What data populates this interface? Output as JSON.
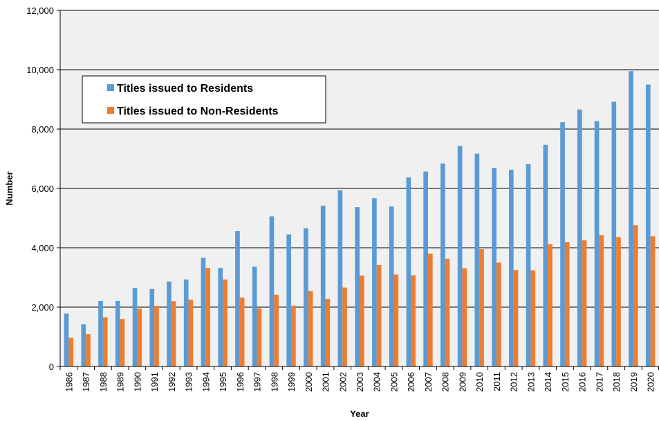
{
  "chart_data": {
    "type": "bar",
    "title": "",
    "xlabel": "Year",
    "ylabel": "Number",
    "ylim": [
      0,
      12000
    ],
    "yticks": [
      0,
      2000,
      4000,
      6000,
      8000,
      10000,
      12000
    ],
    "ytick_labels": [
      "0",
      "2,000",
      "4,000",
      "6,000",
      "8,000",
      "10,000",
      "12,000"
    ],
    "grid": true,
    "legend_position": "top-left",
    "categories": [
      "1986",
      "1987",
      "1988",
      "1989",
      "1990",
      "1991",
      "1992",
      "1993",
      "1994",
      "1995",
      "1996",
      "1997",
      "1998",
      "1999",
      "2000",
      "2001",
      "2002",
      "2003",
      "2004",
      "2005",
      "2006",
      "2007",
      "2008",
      "2009",
      "2010",
      "2011",
      "2012",
      "2013",
      "2014",
      "2015",
      "2016",
      "2017",
      "2018",
      "2019",
      "2020"
    ],
    "series": [
      {
        "name": "Titles issued to Residents",
        "color": "#5B9BD5",
        "values": [
          1780,
          1420,
          2210,
          2210,
          2650,
          2610,
          2860,
          2930,
          3660,
          3320,
          4560,
          3360,
          5060,
          4450,
          4660,
          5420,
          5940,
          5370,
          5670,
          5390,
          6370,
          6570,
          6840,
          7430,
          7170,
          6690,
          6630,
          6820,
          7470,
          8230,
          8660,
          8270,
          8920,
          9950,
          9500
        ]
      },
      {
        "name": "Titles issued to Non-Residents",
        "color": "#ED7D31",
        "values": [
          970,
          1090,
          1660,
          1600,
          1950,
          2040,
          2200,
          2250,
          3320,
          2930,
          2320,
          1960,
          2420,
          2050,
          2540,
          2280,
          2660,
          3060,
          3420,
          3100,
          3070,
          3800,
          3630,
          3310,
          3950,
          3500,
          3250,
          3240,
          4120,
          4190,
          4250,
          4420,
          4360,
          4760,
          4390
        ]
      }
    ]
  }
}
